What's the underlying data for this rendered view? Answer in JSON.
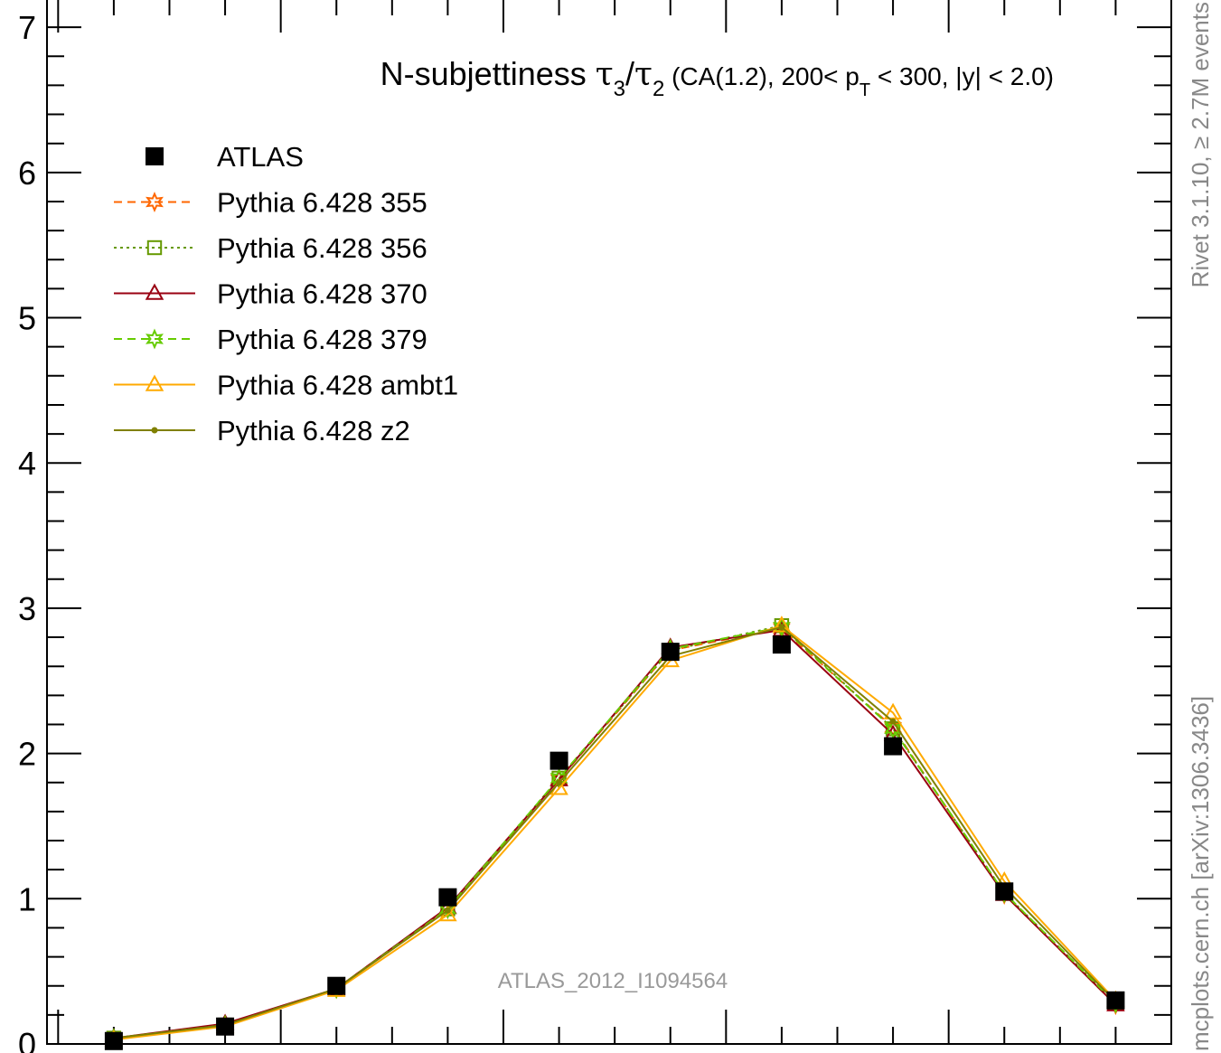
{
  "chart_data": {
    "type": "line",
    "title": {
      "main": "N-subjettiness",
      "tau": "τ",
      "sub3": "3",
      "slash": "/",
      "sub2": "2",
      "cond_pre": "(CA(1.2), 200< p",
      "cond_sub": "T",
      "cond_post": " < 300, |y| < 2.0)"
    },
    "x": [
      0.05,
      0.15,
      0.25,
      0.35,
      0.45,
      0.55,
      0.65,
      0.75,
      0.85,
      0.95
    ],
    "xlim": [
      -0.01,
      1.0
    ],
    "ylim": [
      0,
      7.2
    ],
    "yticks": [
      0,
      1,
      2,
      3,
      4,
      5,
      6,
      7
    ],
    "ytick_labels": [
      "0",
      "1",
      "2",
      "3",
      "4",
      "5",
      "6",
      "7"
    ],
    "grid": false,
    "legend_position": "top-left",
    "series": [
      {
        "name": "ATLAS",
        "color": "#000000",
        "marker": "filled-square",
        "line": "none",
        "values": [
          0.02,
          0.12,
          0.4,
          1.01,
          1.95,
          2.7,
          2.75,
          2.05,
          1.05,
          0.3
        ]
      },
      {
        "name": "Pythia 6.428 355",
        "color": "#ff6600",
        "marker": "open-star",
        "line": "dashed",
        "values": [
          0.04,
          0.13,
          0.38,
          0.93,
          1.82,
          2.71,
          2.86,
          2.18,
          1.03,
          0.27
        ]
      },
      {
        "name": "Pythia 6.428 356",
        "color": "#669900",
        "marker": "open-square",
        "line": "dotted",
        "values": [
          0.04,
          0.13,
          0.38,
          0.93,
          1.83,
          2.71,
          2.88,
          2.17,
          1.04,
          0.28
        ]
      },
      {
        "name": "Pythia 6.428 370",
        "color": "#990011",
        "marker": "open-triangle",
        "line": "solid",
        "values": [
          0.04,
          0.14,
          0.38,
          0.94,
          1.82,
          2.73,
          2.85,
          2.13,
          1.03,
          0.27
        ]
      },
      {
        "name": "Pythia 6.428 379",
        "color": "#66cc00",
        "marker": "open-star",
        "line": "dashed",
        "values": [
          0.04,
          0.13,
          0.38,
          0.93,
          1.83,
          2.72,
          2.87,
          2.17,
          1.04,
          0.28
        ]
      },
      {
        "name": "Pythia 6.428 ambt1",
        "color": "#ffaa00",
        "marker": "open-triangle",
        "line": "solid",
        "values": [
          0.03,
          0.12,
          0.37,
          0.89,
          1.76,
          2.64,
          2.88,
          2.28,
          1.12,
          0.3
        ]
      },
      {
        "name": "Pythia 6.428 z2",
        "color": "#808000",
        "marker": "dot",
        "line": "solid",
        "values": [
          0.04,
          0.13,
          0.38,
          0.92,
          1.8,
          2.67,
          2.87,
          2.22,
          1.08,
          0.29
        ]
      }
    ],
    "annotation": "ATLAS_2012_I1094564",
    "side_label_top": "Rivet 3.1.10,  ≥ 2.7M events",
    "side_label_bottom": "mcplots.cern.ch [arXiv:1306.3436]"
  }
}
